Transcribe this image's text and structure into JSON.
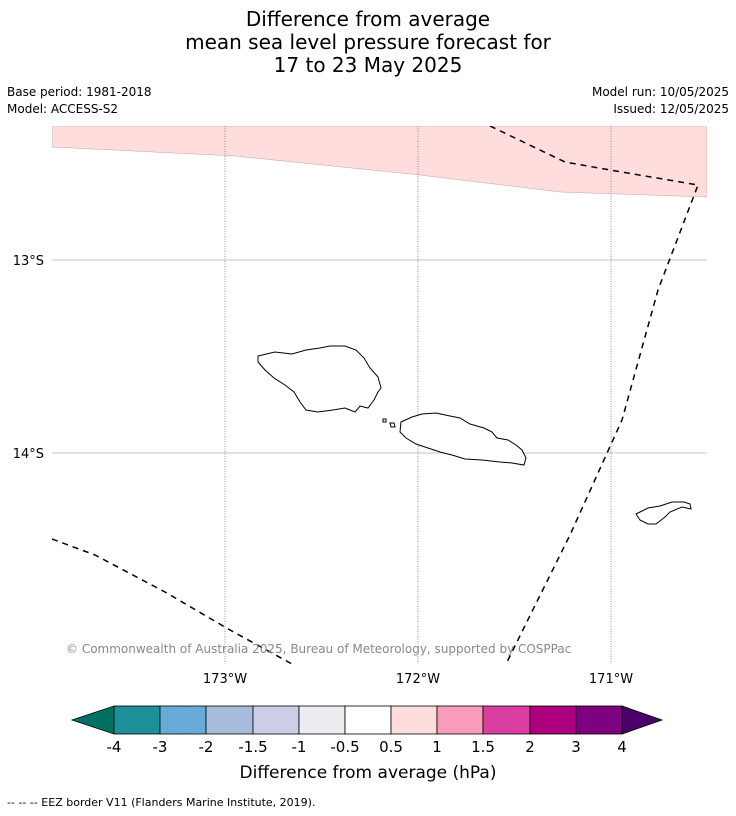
{
  "title": {
    "line1": "Difference from average",
    "line2": "mean sea level pressure forecast for",
    "line3": "17 to 23 May 2025"
  },
  "meta": {
    "base_period": "Base period: 1981-2018",
    "model": "Model: ACCESS-S2",
    "model_run": "Model run: 10/05/2025",
    "issued": "Issued: 12/05/2025"
  },
  "map": {
    "lat_labels": [
      "13°S",
      "14°S"
    ],
    "lon_labels": [
      "173°W",
      "172°W",
      "171°W"
    ],
    "copyright": "© Commonwealth of Australia 2025, Bureau of Meteorology, supported by COSPPac",
    "anomaly_fill_color": "#ffdddd",
    "islands": [
      "Savai'i",
      "Upolu",
      "Tutuila"
    ]
  },
  "colorbar": {
    "tick_labels": [
      "-4",
      "-3",
      "-2",
      "-1.5",
      "-1",
      "-0.5",
      "0.5",
      "1",
      "1.5",
      "2",
      "3",
      "4"
    ],
    "colors": [
      "#007161",
      "#1b9096",
      "#67abd6",
      "#a8bbdb",
      "#cdcee6",
      "#ececf0",
      "#ffffff",
      "#ffdddd",
      "#f99cbb",
      "#da3ea0",
      "#ac007f",
      "#7e0080",
      "#4a0068"
    ],
    "label": "Difference from average (hPa)"
  },
  "footer": {
    "legend_text": "--  --  -- EEZ border V11 (Flanders Marine Institute, 2019)."
  }
}
